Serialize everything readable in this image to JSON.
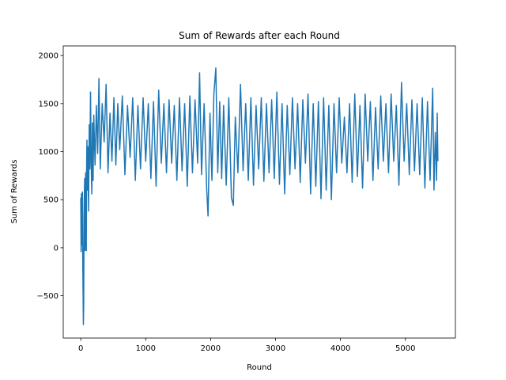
{
  "chart_data": {
    "type": "line",
    "title": "Sum of Rewards after each Round",
    "xlabel": "Round",
    "ylabel": "Sum of Rewards",
    "xlim": [
      -270,
      5770
    ],
    "ylim": [
      -940,
      2100
    ],
    "xticks": [
      0,
      1000,
      2000,
      3000,
      4000,
      5000
    ],
    "xtick_labels": [
      "0",
      "1000",
      "2000",
      "3000",
      "4000",
      "5000"
    ],
    "yticks": [
      -500,
      0,
      500,
      1000,
      1500,
      2000
    ],
    "ytick_labels": [
      "−500",
      "0",
      "500",
      "1000",
      "1500",
      "2000"
    ],
    "grid": false,
    "line_color": "#1f77b4",
    "series": [
      {
        "points": [
          [
            0,
            520
          ],
          [
            5,
            -40
          ],
          [
            10,
            560
          ],
          [
            15,
            480
          ],
          [
            20,
            30
          ],
          [
            25,
            580
          ],
          [
            30,
            -90
          ],
          [
            35,
            -450
          ],
          [
            40,
            -800
          ],
          [
            45,
            -600
          ],
          [
            50,
            300
          ],
          [
            55,
            560
          ],
          [
            60,
            720
          ],
          [
            65,
            -30
          ],
          [
            70,
            540
          ],
          [
            75,
            780
          ],
          [
            80,
            120
          ],
          [
            85,
            -30
          ],
          [
            90,
            850
          ],
          [
            95,
            1120
          ],
          [
            100,
            600
          ],
          [
            110,
            1050
          ],
          [
            120,
            380
          ],
          [
            130,
            1280
          ],
          [
            140,
            820
          ],
          [
            150,
            1620
          ],
          [
            160,
            900
          ],
          [
            170,
            560
          ],
          [
            180,
            1300
          ],
          [
            190,
            700
          ],
          [
            200,
            1380
          ],
          [
            220,
            860
          ],
          [
            240,
            1480
          ],
          [
            260,
            980
          ],
          [
            280,
            1760
          ],
          [
            300,
            820
          ],
          [
            330,
            1500
          ],
          [
            360,
            1100
          ],
          [
            390,
            1700
          ],
          [
            420,
            780
          ],
          [
            450,
            1400
          ],
          [
            480,
            900
          ],
          [
            510,
            1560
          ],
          [
            540,
            860
          ],
          [
            570,
            1500
          ],
          [
            600,
            1020
          ],
          [
            640,
            1580
          ],
          [
            680,
            760
          ],
          [
            720,
            1480
          ],
          [
            760,
            940
          ],
          [
            800,
            1560
          ],
          [
            840,
            700
          ],
          [
            880,
            1480
          ],
          [
            920,
            820
          ],
          [
            960,
            1560
          ],
          [
            1000,
            900
          ],
          [
            1040,
            1500
          ],
          [
            1080,
            720
          ],
          [
            1120,
            1520
          ],
          [
            1160,
            640
          ],
          [
            1200,
            1640
          ],
          [
            1240,
            880
          ],
          [
            1280,
            1500
          ],
          [
            1320,
            780
          ],
          [
            1360,
            1540
          ],
          [
            1400,
            880
          ],
          [
            1440,
            1480
          ],
          [
            1480,
            700
          ],
          [
            1520,
            1560
          ],
          [
            1560,
            800
          ],
          [
            1600,
            1500
          ],
          [
            1640,
            640
          ],
          [
            1680,
            1580
          ],
          [
            1720,
            780
          ],
          [
            1760,
            1540
          ],
          [
            1800,
            880
          ],
          [
            1830,
            1820
          ],
          [
            1860,
            760
          ],
          [
            1900,
            1500
          ],
          [
            1940,
            600
          ],
          [
            1960,
            330
          ],
          [
            1990,
            1400
          ],
          [
            2020,
            700
          ],
          [
            2050,
            1600
          ],
          [
            2080,
            1870
          ],
          [
            2110,
            780
          ],
          [
            2140,
            1520
          ],
          [
            2170,
            720
          ],
          [
            2200,
            1480
          ],
          [
            2240,
            650
          ],
          [
            2280,
            1560
          ],
          [
            2320,
            520
          ],
          [
            2350,
            440
          ],
          [
            2380,
            1360
          ],
          [
            2420,
            780
          ],
          [
            2460,
            1700
          ],
          [
            2500,
            800
          ],
          [
            2540,
            1500
          ],
          [
            2580,
            700
          ],
          [
            2620,
            1560
          ],
          [
            2660,
            650
          ],
          [
            2700,
            1480
          ],
          [
            2740,
            820
          ],
          [
            2780,
            1560
          ],
          [
            2820,
            690
          ],
          [
            2860,
            1500
          ],
          [
            2900,
            780
          ],
          [
            2940,
            1540
          ],
          [
            2980,
            720
          ],
          [
            3020,
            1620
          ],
          [
            3060,
            660
          ],
          [
            3100,
            1500
          ],
          [
            3140,
            560
          ],
          [
            3180,
            1480
          ],
          [
            3220,
            760
          ],
          [
            3260,
            1560
          ],
          [
            3300,
            820
          ],
          [
            3340,
            1500
          ],
          [
            3380,
            680
          ],
          [
            3420,
            1540
          ],
          [
            3460,
            880
          ],
          [
            3500,
            1600
          ],
          [
            3540,
            560
          ],
          [
            3580,
            1500
          ],
          [
            3620,
            640
          ],
          [
            3660,
            1520
          ],
          [
            3700,
            510
          ],
          [
            3740,
            1560
          ],
          [
            3780,
            600
          ],
          [
            3820,
            1480
          ],
          [
            3860,
            500
          ],
          [
            3900,
            1500
          ],
          [
            3940,
            780
          ],
          [
            3980,
            1560
          ],
          [
            4020,
            880
          ],
          [
            4060,
            1360
          ],
          [
            4100,
            780
          ],
          [
            4140,
            1500
          ],
          [
            4180,
            680
          ],
          [
            4220,
            1600
          ],
          [
            4260,
            740
          ],
          [
            4300,
            1480
          ],
          [
            4340,
            620
          ],
          [
            4380,
            1600
          ],
          [
            4420,
            900
          ],
          [
            4460,
            1520
          ],
          [
            4500,
            700
          ],
          [
            4540,
            1460
          ],
          [
            4580,
            820
          ],
          [
            4620,
            1580
          ],
          [
            4660,
            900
          ],
          [
            4700,
            1500
          ],
          [
            4740,
            780
          ],
          [
            4780,
            1600
          ],
          [
            4820,
            900
          ],
          [
            4860,
            1480
          ],
          [
            4900,
            650
          ],
          [
            4940,
            1720
          ],
          [
            4980,
            900
          ],
          [
            5020,
            1500
          ],
          [
            5060,
            760
          ],
          [
            5100,
            1540
          ],
          [
            5140,
            800
          ],
          [
            5180,
            1500
          ],
          [
            5220,
            760
          ],
          [
            5260,
            1560
          ],
          [
            5300,
            620
          ],
          [
            5340,
            1520
          ],
          [
            5380,
            700
          ],
          [
            5420,
            1660
          ],
          [
            5440,
            600
          ],
          [
            5460,
            1200
          ],
          [
            5480,
            700
          ],
          [
            5490,
            1400
          ],
          [
            5500,
            900
          ]
        ]
      }
    ]
  }
}
